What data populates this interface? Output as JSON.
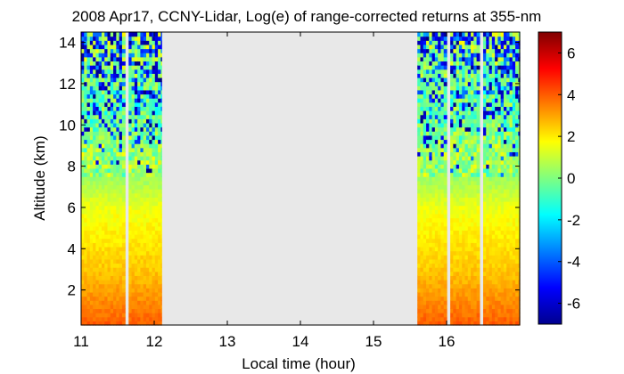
{
  "chart_data": {
    "type": "heatmap",
    "title": "2008 Apr17, CCNY-Lidar, Log(e) of range-corrected returns at 355-nm",
    "xlabel": "Local time (hour)",
    "ylabel": "Altitude (km)",
    "xlim": [
      11,
      17
    ],
    "ylim": [
      0.3,
      14.5
    ],
    "x_ticks": [
      11,
      12,
      13,
      14,
      15,
      16
    ],
    "y_ticks": [
      2,
      4,
      6,
      8,
      10,
      12,
      14
    ],
    "colorbar": {
      "range": [
        -7,
        7
      ],
      "ticks": [
        -6,
        -4,
        -2,
        0,
        2,
        4,
        6
      ],
      "colormap": "jet"
    },
    "data_segments": [
      {
        "start_hour": 11.0,
        "end_hour": 11.6
      },
      {
        "start_hour": 11.65,
        "end_hour": 12.1
      },
      {
        "start_hour": 15.6,
        "end_hour": 16.0
      },
      {
        "start_hour": 16.05,
        "end_hour": 16.45
      },
      {
        "start_hour": 16.5,
        "end_hour": 17.0
      }
    ],
    "profile_shape": {
      "near_surface_value": 4,
      "value_at_3km": 2.5,
      "value_at_6km": 1.5,
      "value_at_8km": 0,
      "noise_onset_km": 7.5
    },
    "missing_data_color": "#e8e8e8"
  }
}
